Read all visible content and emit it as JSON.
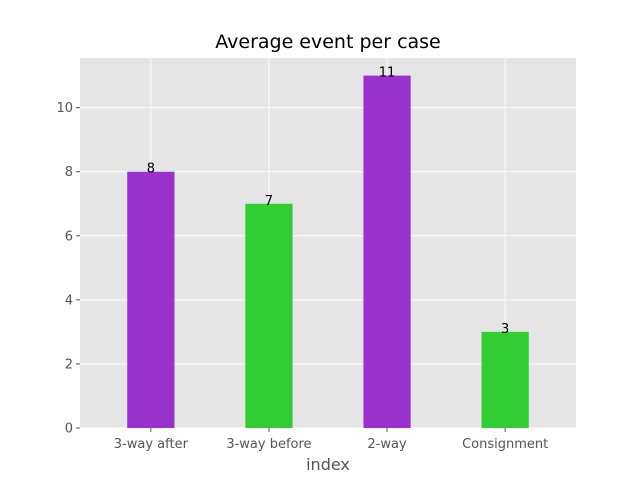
{
  "chart_data": {
    "type": "bar",
    "title": "Average event per case",
    "xlabel": "index",
    "ylabel": "",
    "categories": [
      "3-way after",
      "3-way before",
      "2-way",
      "Consignment"
    ],
    "values": [
      8,
      7,
      11,
      3
    ],
    "value_labels": [
      "8",
      "7",
      "11",
      "3"
    ],
    "bar_colors": [
      "#9932cc",
      "#32cd32",
      "#9932cc",
      "#32cd32"
    ],
    "ylim": [
      0,
      11.55
    ],
    "yticks": [
      0,
      2,
      4,
      6,
      8,
      10
    ],
    "ytick_labels": [
      "0",
      "2",
      "4",
      "6",
      "8",
      "10"
    ],
    "grid": true,
    "style": "ggplot",
    "background_color": "#e5e5e5"
  }
}
